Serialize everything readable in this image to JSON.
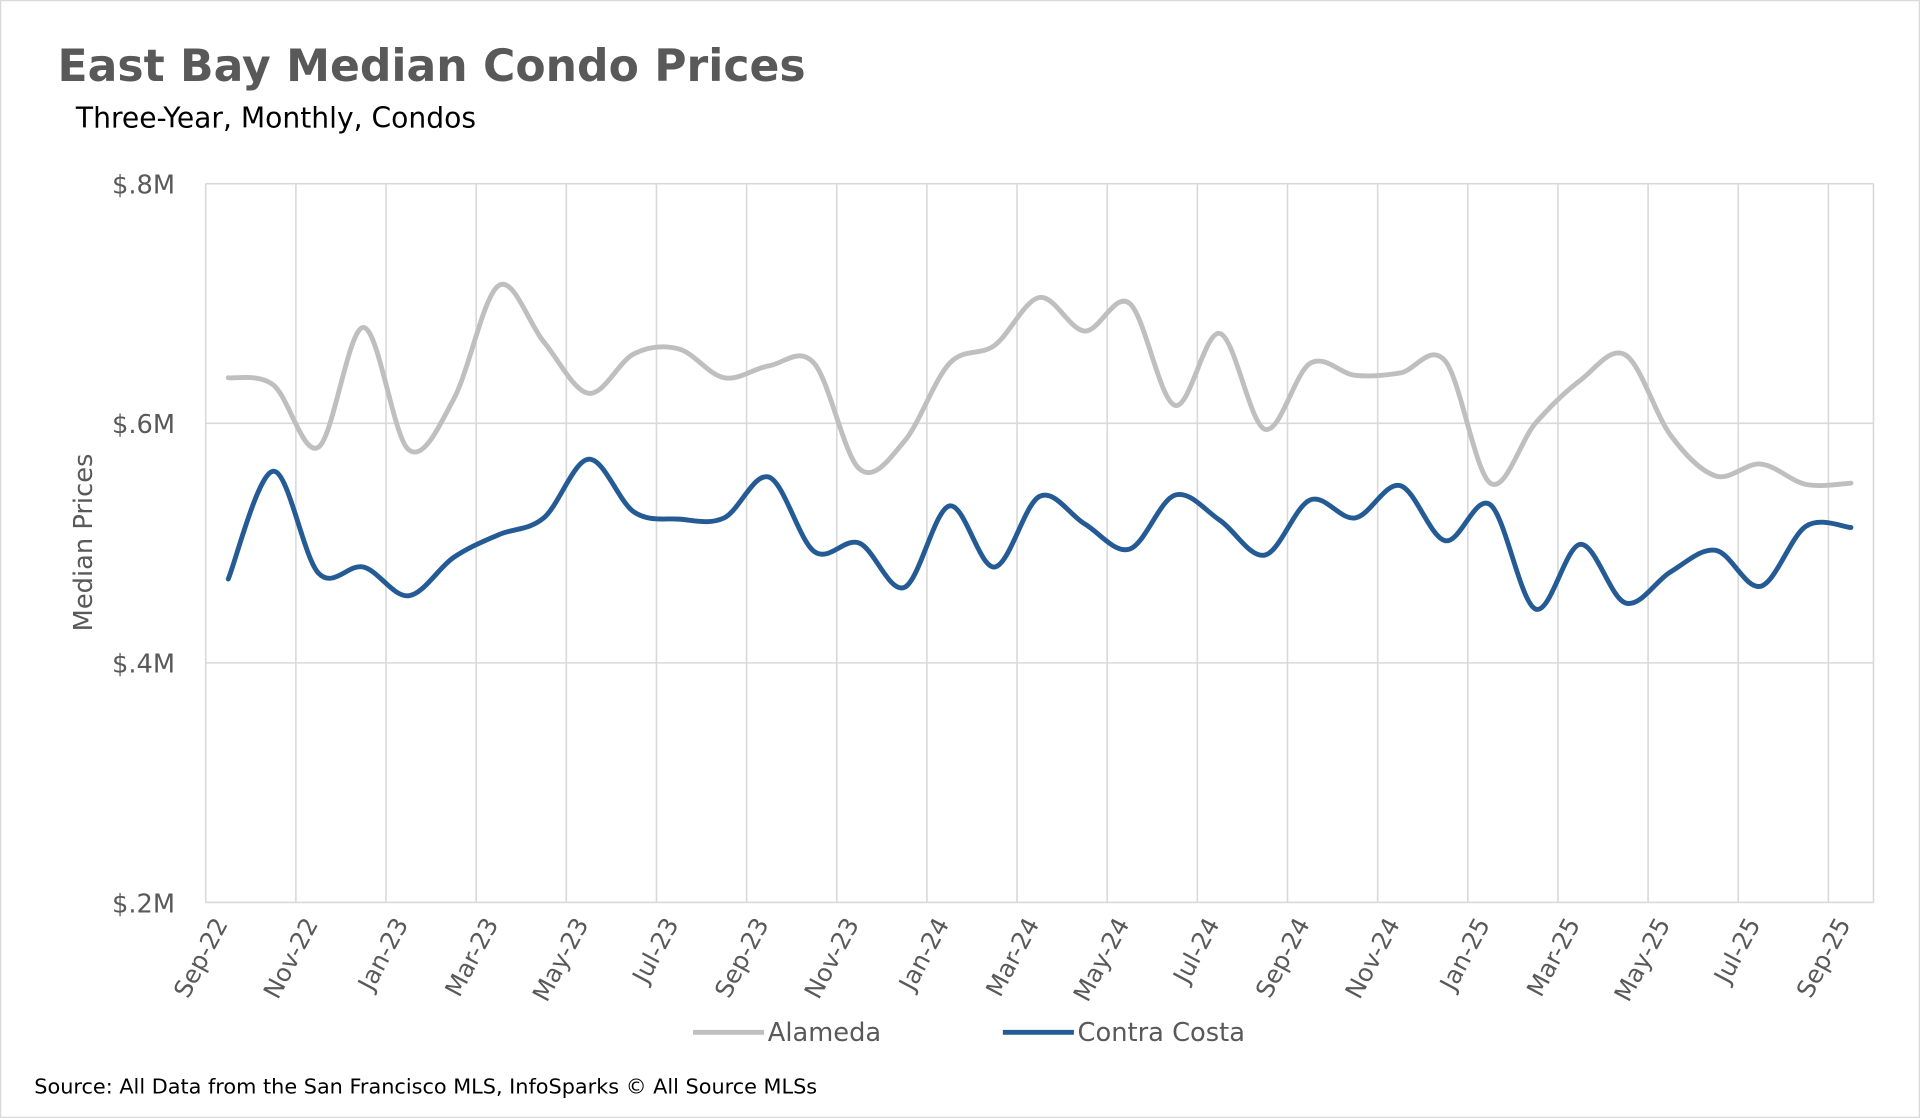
{
  "chart_data": {
    "type": "line",
    "title": "East Bay Median Condo Prices",
    "subtitle": "Three-Year, Monthly, Condos",
    "y_label": "Median Prices",
    "source": "Source: All Data from the San Francisco MLS, InfoSparks © All Source MLSs",
    "categories": [
      "Sep-22",
      null,
      "Nov-22",
      null,
      "Jan-23",
      null,
      "Mar-23",
      null,
      "May-23",
      null,
      "Jul-23",
      null,
      "Sep-23",
      null,
      "Nov-23",
      null,
      "Jan-24",
      null,
      "Mar-24",
      null,
      "May-24",
      null,
      "Jul-24",
      null,
      "Sep-24",
      null,
      "Nov-24",
      null,
      "Jan-25",
      null,
      "Mar-25",
      null,
      "May-25",
      null,
      "Jul-25",
      null,
      "Sep-25"
    ],
    "series": [
      {
        "name": "Alameda",
        "color": "#bfbfbf",
        "values": [
          638000,
          632000,
          580000,
          680000,
          578000,
          620000,
          715000,
          668000,
          625000,
          658000,
          662000,
          638000,
          648000,
          650000,
          562000,
          585000,
          650000,
          665000,
          705000,
          677000,
          700000,
          615000,
          675000,
          595000,
          650000,
          640000,
          642000,
          652000,
          550000,
          600000,
          636000,
          657000,
          590000,
          556000,
          566000,
          549000,
          550000
        ]
      },
      {
        "name": "Contra Costa",
        "color": "#245b95",
        "values": [
          470000,
          560000,
          475000,
          480000,
          456000,
          488000,
          507000,
          521000,
          570000,
          526000,
          520000,
          521000,
          555000,
          493000,
          500000,
          463000,
          531000,
          480000,
          539000,
          516000,
          495000,
          540000,
          519000,
          490000,
          536000,
          521000,
          548000,
          502000,
          532000,
          445000,
          499000,
          450000,
          476000,
          494000,
          464000,
          514000,
          513000
        ]
      }
    ],
    "ylim": [
      200000,
      800000
    ],
    "yticks": [
      {
        "value": 200000,
        "label": "$.2M"
      },
      {
        "value": 400000,
        "label": "$.4M"
      },
      {
        "value": 600000,
        "label": "$.6M"
      },
      {
        "value": 800000,
        "label": "$.8M"
      }
    ],
    "grid": true,
    "legend": "bottom",
    "smooth": true
  }
}
